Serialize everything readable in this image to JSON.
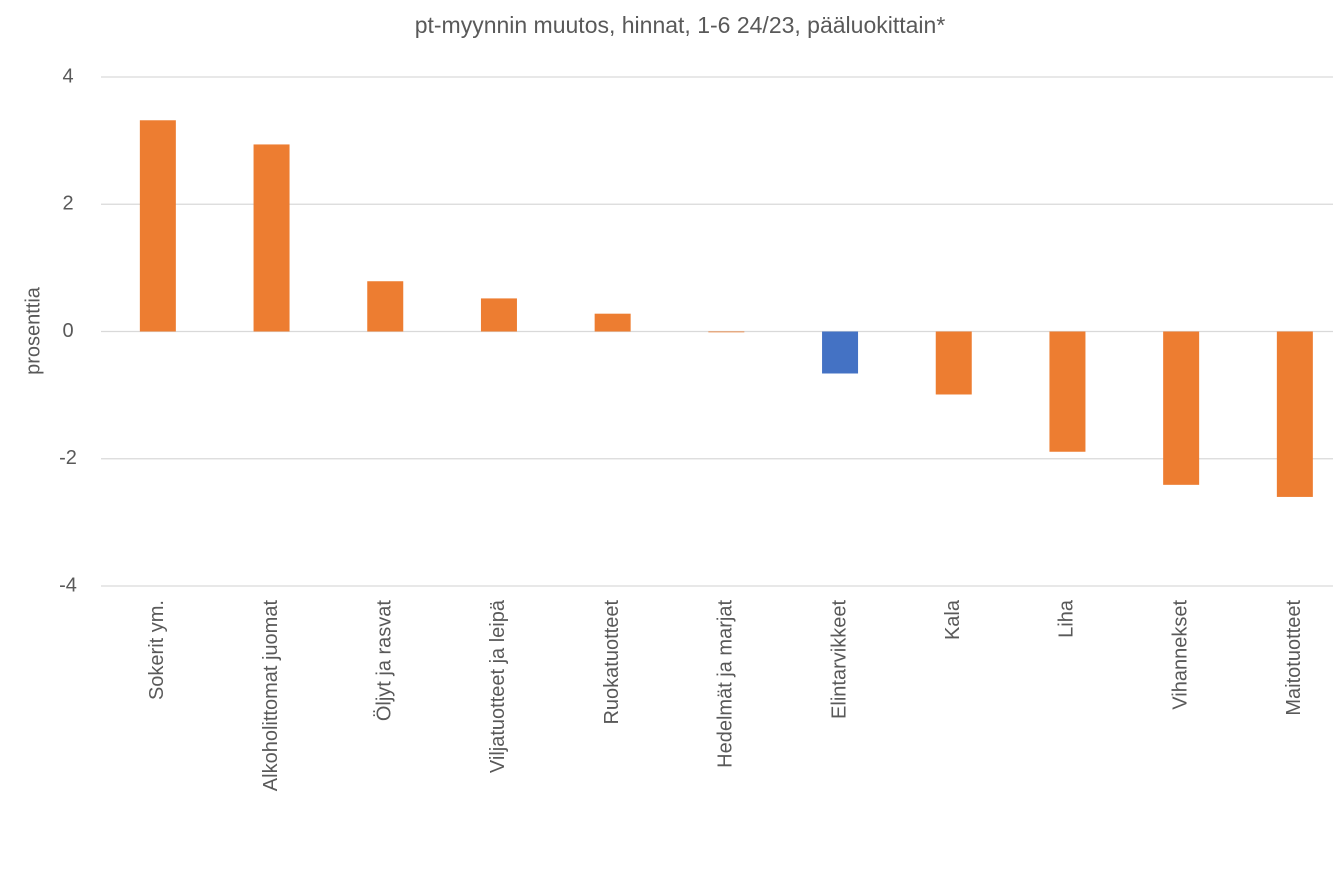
{
  "chart_data": {
    "type": "bar",
    "title": "pt-myynnin muutos, hinnat, 1-6 24/23, pääluokittain*",
    "y_label": "prosenttia",
    "categories": [
      "Sokerit ym.",
      "Alkoholittomat juomat",
      "Öljyt ja rasvat",
      "Viljatuotteet ja leipä",
      "Ruokatuotteet",
      "Hedelmät ja marjat",
      "Elintarvikkeet",
      "Kala",
      "Liha",
      "Vihannekset",
      "Maitotuotteet"
    ],
    "values": [
      3.32,
      2.94,
      0.79,
      0.52,
      0.28,
      -0.01,
      -0.66,
      -0.99,
      -1.89,
      -2.41,
      -2.6
    ],
    "colors": [
      "#ed7d31",
      "#ed7d31",
      "#ed7d31",
      "#ed7d31",
      "#ed7d31",
      "#ed7d31",
      "#4472c4",
      "#ed7d31",
      "#ed7d31",
      "#ed7d31",
      "#ed7d31"
    ],
    "ylim": [
      -4,
      4
    ],
    "yticks": [
      4,
      2,
      0,
      -2,
      -4
    ],
    "grid": true
  }
}
